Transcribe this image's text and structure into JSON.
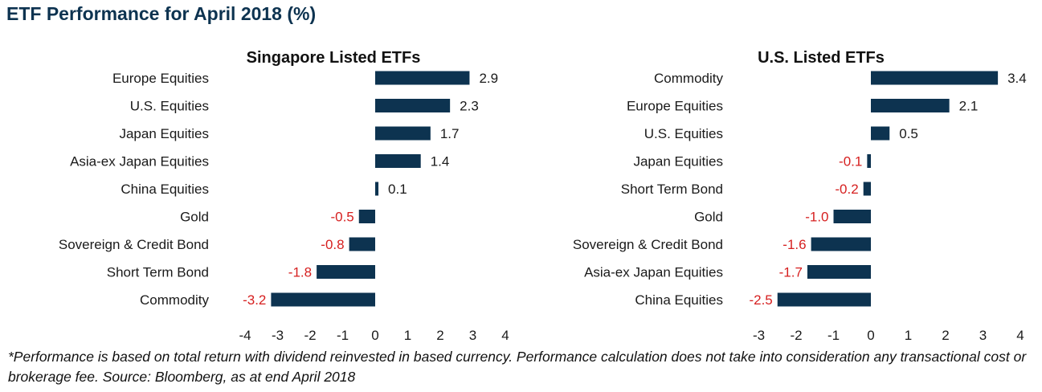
{
  "page_title": "ETF Performance for April 2018 (%)",
  "footnote": "*Performance is based on total return with dividend reinvested in based currency. Performance calculation does not take into consideration any transactional cost or brokerage fee. Source: Bloomberg, as at end April 2018",
  "colors": {
    "bar": "#0d3350",
    "negative_label": "#d61f1f",
    "title": "#0d3350"
  },
  "chart_data": [
    {
      "type": "bar",
      "orientation": "horizontal",
      "title": "Singapore Listed ETFs",
      "categories": [
        "Europe Equities",
        "U.S. Equities",
        "Japan Equities",
        "Asia-ex Japan Equities",
        "China Equities",
        "Gold",
        "Sovereign & Credit Bond",
        "Short Term Bond",
        "Commodity"
      ],
      "values": [
        2.9,
        2.3,
        1.7,
        1.4,
        0.1,
        -0.5,
        -0.8,
        -1.8,
        -3.2
      ],
      "value_labels": [
        "2.9",
        "2.3",
        "1.7",
        "1.4",
        "0.1",
        "-0.5",
        "-0.8",
        "-1.8",
        "-3.2"
      ],
      "xlim": [
        -4,
        4
      ],
      "ticks": [
        -4,
        -3,
        -2,
        -1,
        0,
        1,
        2,
        3,
        4
      ],
      "tick_labels": [
        "-4",
        "-3",
        "-2",
        "-1",
        "0",
        "1",
        "2",
        "3",
        "4"
      ],
      "grid": false,
      "legend": "none"
    },
    {
      "type": "bar",
      "orientation": "horizontal",
      "title": "U.S. Listed ETFs",
      "categories": [
        "Commodity",
        "Europe Equities",
        "U.S. Equities",
        "Japan Equities",
        "Short Term Bond",
        "Gold",
        "Sovereign & Credit Bond",
        "Asia-ex Japan Equities",
        "China Equities"
      ],
      "values": [
        3.4,
        2.1,
        0.5,
        -0.1,
        -0.2,
        -1.0,
        -1.6,
        -1.7,
        -2.5
      ],
      "value_labels": [
        "3.4",
        "2.1",
        "0.5",
        "-0.1",
        "-0.2",
        "-1.0",
        "-1.6",
        "-1.7",
        "-2.5"
      ],
      "xlim": [
        -3,
        4
      ],
      "ticks": [
        -3,
        -2,
        -1,
        0,
        1,
        2,
        3,
        4
      ],
      "tick_labels": [
        "-3",
        "-2",
        "-1",
        "0",
        "1",
        "2",
        "3",
        "4"
      ],
      "grid": false,
      "legend": "none"
    }
  ]
}
